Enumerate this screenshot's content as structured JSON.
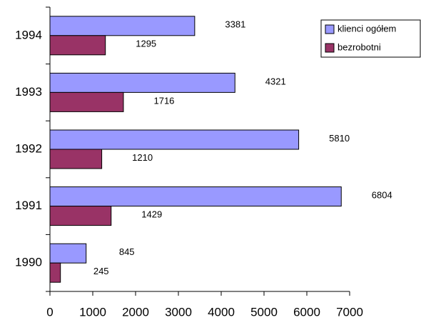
{
  "chart_data": {
    "type": "hbar",
    "categories": [
      "1990",
      "1991",
      "1992",
      "1993",
      "1994"
    ],
    "series": [
      {
        "name": "klienci ogółem",
        "color": "#9999ff",
        "values": [
          845,
          6804,
          5810,
          4321,
          3381
        ]
      },
      {
        "name": "bezrobotni",
        "color": "#993366",
        "values": [
          245,
          1429,
          1210,
          1716,
          1295
        ]
      }
    ],
    "xlim": [
      0,
      7000
    ],
    "xticks": [
      0,
      1000,
      2000,
      3000,
      4000,
      5000,
      6000,
      7000
    ],
    "legend": "upper right"
  }
}
